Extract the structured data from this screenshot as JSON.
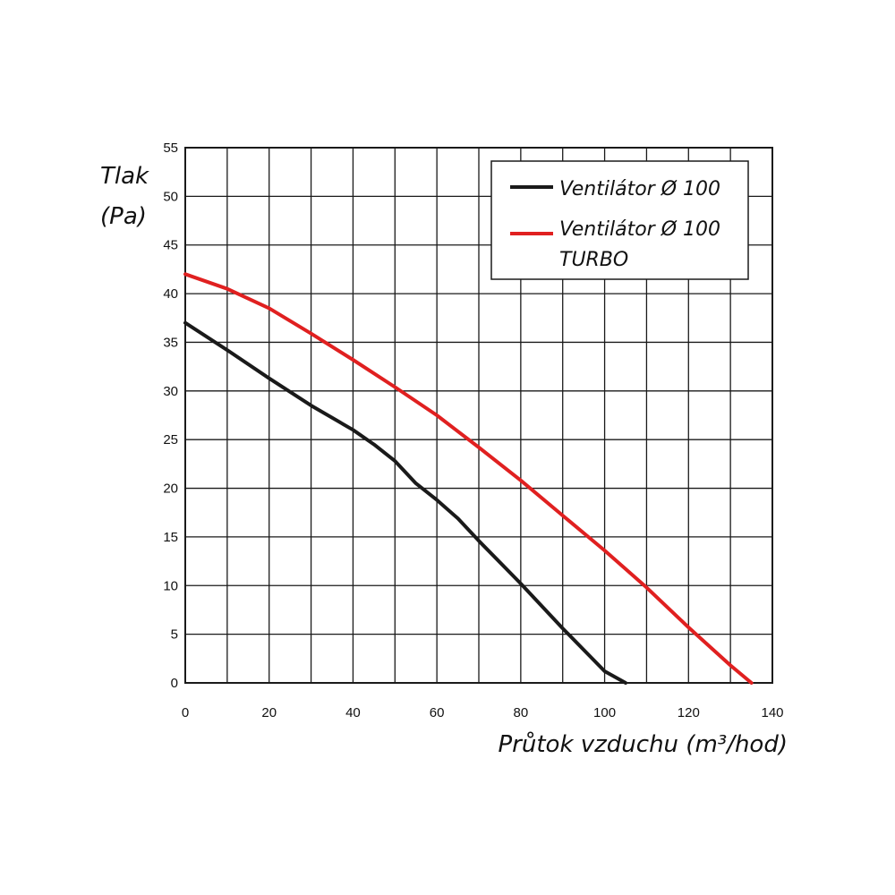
{
  "chart_data": {
    "type": "line",
    "xlabel": "Průtok vzduchu (m³/hod)",
    "ylabel_lines": [
      "Tlak",
      "(Pa)"
    ],
    "xlim": [
      0,
      140
    ],
    "ylim": [
      0,
      55
    ],
    "x_major_ticks": [
      0,
      20,
      40,
      60,
      80,
      100,
      120,
      140
    ],
    "y_ticks": [
      0,
      5,
      10,
      15,
      20,
      25,
      30,
      35,
      40,
      45,
      50,
      55
    ],
    "x_grid_step": 10,
    "grid": true,
    "legend_position": "top-right",
    "series": [
      {
        "name": "Ventilátor Ø 100",
        "legend_lines": [
          "Ventilátor Ø 100"
        ],
        "color": "#1a1a1a",
        "x": [
          0,
          10,
          20,
          30,
          40,
          45,
          50,
          55,
          60,
          65,
          70,
          80,
          90,
          100,
          105
        ],
        "y": [
          37,
          34.2,
          31.3,
          28.5,
          26,
          24.5,
          22.8,
          20.5,
          18.8,
          16.9,
          14.6,
          10.2,
          5.6,
          1.2,
          0
        ]
      },
      {
        "name": "Ventilátor Ø 100 TURBO",
        "legend_lines": [
          "Ventilátor Ø 100",
          "TURBO"
        ],
        "color": "#e02020",
        "x": [
          0,
          10,
          20,
          30,
          40,
          50,
          60,
          70,
          80,
          90,
          100,
          110,
          120,
          130,
          135
        ],
        "y": [
          42,
          40.5,
          38.5,
          35.9,
          33.2,
          30.4,
          27.5,
          24.2,
          20.8,
          17.2,
          13.6,
          9.8,
          5.7,
          1.8,
          0
        ]
      }
    ]
  }
}
